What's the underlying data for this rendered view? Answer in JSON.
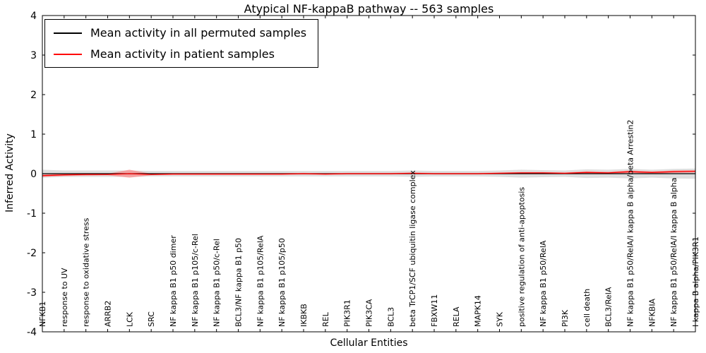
{
  "chart_data": {
    "type": "line",
    "title": "Atypical NF-kappaB pathway -- 563 samples",
    "xlabel": "Cellular Entities",
    "ylabel": "Inferred Activity",
    "ylim": [
      -4,
      4
    ],
    "yticks": [
      -4,
      -3,
      -2,
      -1,
      0,
      1,
      2,
      3,
      4
    ],
    "grid": false,
    "legend_position": "upper-left",
    "zero_line": 0,
    "categories": [
      "NFKB1",
      "response to UV",
      "response to oxidative stress",
      "ARRB2",
      "LCK",
      "SRC",
      "NF kappa B1 p50 dimer",
      "NF kappa B1 p105/c-Rel",
      "NF kappa B1 p50/c-Rel",
      "BCL3/NF kappa B1 p50",
      "NF kappa B1 p105/RelA",
      "NF kappa B1 p105/p50",
      "IKBKB",
      "REL",
      "PIK3R1",
      "PIK3CA",
      "BCL3",
      "beta TrCP1/SCF ubiquitin ligase complex",
      "FBXW11",
      "RELA",
      "MAPK14",
      "SYK",
      "positive regulation of anti-apoptosis",
      "NF kappa B1 p50/RelA",
      "PI3K",
      "cell death",
      "BCL3/RelA",
      "NF kappa B1 p50/RelA/I kappa B alpha/beta Arrestin2",
      "NFKBIA",
      "NF kappa B1 p50/RelA/I kappa B alpha",
      "I kappa B alpha/PIK3R1"
    ],
    "series": [
      {
        "name": "Mean activity in all permuted samples",
        "color": "#000000",
        "values": [
          0,
          0,
          0,
          0,
          0,
          0,
          0,
          0,
          0,
          0,
          0,
          0,
          0,
          0,
          0,
          0,
          0,
          0,
          0,
          0,
          0,
          0,
          0,
          0,
          0,
          0,
          0,
          0,
          0,
          0,
          0
        ]
      },
      {
        "name": "Mean activity in patient samples",
        "color": "#ff0000",
        "values": [
          -0.05,
          -0.03,
          -0.02,
          -0.02,
          0,
          -0.02,
          -0.01,
          -0.01,
          -0.01,
          -0.01,
          -0.01,
          -0.01,
          0,
          -0.01,
          0,
          0,
          0,
          0.01,
          0,
          0,
          0,
          0.01,
          0.02,
          0.02,
          0.01,
          0.03,
          0.02,
          0.05,
          0.03,
          0.05,
          0.06
        ]
      }
    ],
    "bands": [
      {
        "name": "permuted-std",
        "color": "#c8c8c8",
        "opacity": 0.6,
        "upper": [
          0.1,
          0.08,
          0.08,
          0.08,
          0.08,
          0.07,
          0.07,
          0.07,
          0.07,
          0.07,
          0.07,
          0.07,
          0.07,
          0.07,
          0.07,
          0.07,
          0.07,
          0.08,
          0.07,
          0.07,
          0.07,
          0.08,
          0.1,
          0.09,
          0.08,
          0.11,
          0.1,
          0.12,
          0.1,
          0.12,
          0.13
        ],
        "lower": [
          -0.1,
          -0.08,
          -0.08,
          -0.08,
          -0.08,
          -0.07,
          -0.07,
          -0.07,
          -0.07,
          -0.07,
          -0.07,
          -0.07,
          -0.07,
          -0.07,
          -0.07,
          -0.07,
          -0.07,
          -0.08,
          -0.07,
          -0.07,
          -0.07,
          -0.08,
          -0.1,
          -0.09,
          -0.08,
          -0.11,
          -0.1,
          -0.12,
          -0.1,
          -0.12,
          -0.13
        ]
      },
      {
        "name": "patient-std",
        "color": "#ff7070",
        "opacity": 0.55,
        "upper": [
          -0.02,
          0.0,
          0.0,
          0.0,
          0.1,
          0.0,
          0.01,
          0.01,
          0.01,
          0.01,
          0.01,
          0.01,
          0.02,
          0.01,
          0.02,
          0.02,
          0.02,
          0.03,
          0.02,
          0.02,
          0.02,
          0.03,
          0.04,
          0.04,
          0.03,
          0.06,
          0.05,
          0.08,
          0.06,
          0.08,
          0.09
        ],
        "lower": [
          -0.08,
          -0.06,
          -0.05,
          -0.04,
          -0.1,
          -0.04,
          -0.03,
          -0.03,
          -0.03,
          -0.03,
          -0.03,
          -0.03,
          -0.02,
          -0.03,
          -0.02,
          -0.02,
          -0.02,
          -0.01,
          -0.02,
          -0.02,
          -0.02,
          -0.01,
          0.0,
          0.0,
          -0.01,
          0.0,
          -0.01,
          0.02,
          0.0,
          0.02,
          0.03
        ]
      }
    ]
  },
  "legend": {
    "items": [
      {
        "label": "Mean activity in all permuted samples",
        "color": "#000000"
      },
      {
        "label": "Mean activity in patient samples",
        "color": "#ff0000"
      }
    ]
  }
}
